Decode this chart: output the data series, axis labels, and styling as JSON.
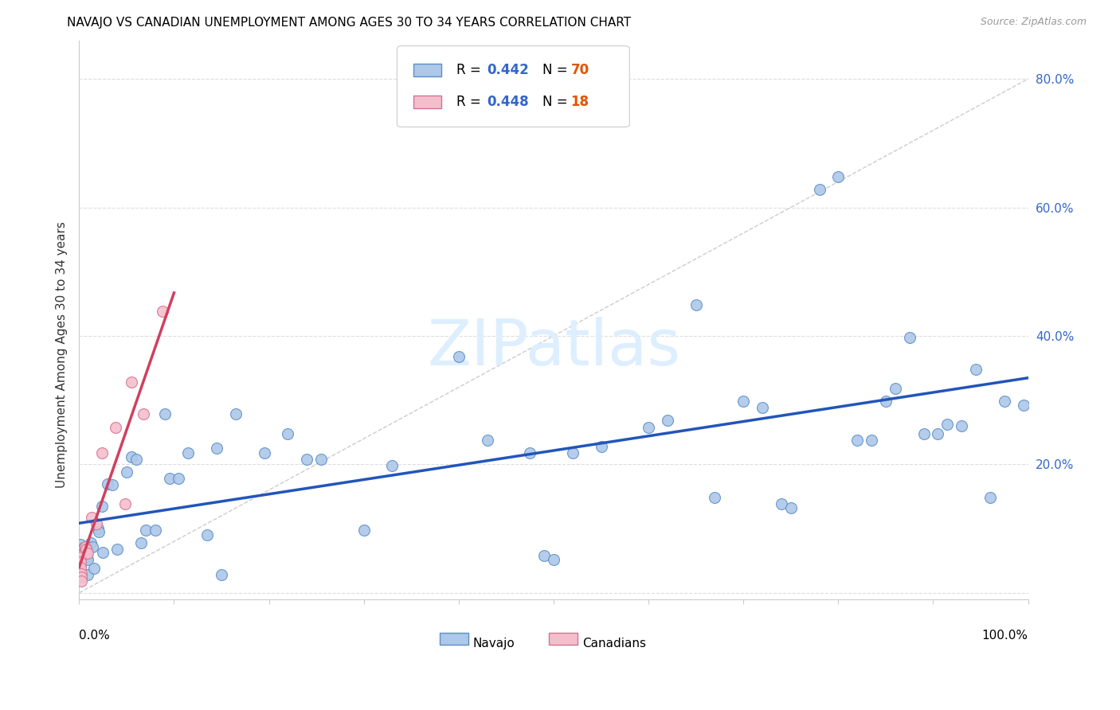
{
  "title": "NAVAJO VS CANADIAN UNEMPLOYMENT AMONG AGES 30 TO 34 YEARS CORRELATION CHART",
  "source": "Source: ZipAtlas.com",
  "ylabel": "Unemployment Among Ages 30 to 34 years",
  "xlim": [
    0.0,
    1.0
  ],
  "ylim": [
    -0.01,
    0.86
  ],
  "ytick_values": [
    0.0,
    0.2,
    0.4,
    0.6,
    0.8
  ],
  "ytick_labels": [
    "",
    "20.0%",
    "40.0%",
    "60.0%",
    "80.0%"
  ],
  "xtick_label_left": "0.0%",
  "xtick_label_right": "100.0%",
  "navajo_R": "0.442",
  "navajo_N": "70",
  "canadian_R": "0.448",
  "canadian_N": "18",
  "navajo_fill": "#adc8e8",
  "navajo_edge": "#5b8fc9",
  "canadian_fill": "#f4bfcc",
  "canadian_edge": "#d87090",
  "navajo_line_color": "#2255bb",
  "canadian_line_color": "#d04060",
  "legend_R_color": "#3366cc",
  "legend_N_color": "#cc3300",
  "watermark_color": "#ddeeff",
  "navajo_x": [
    0.001,
    0.001,
    0.005,
    0.005,
    0.007,
    0.007,
    0.008,
    0.009,
    0.009,
    0.009,
    0.012,
    0.014,
    0.016,
    0.02,
    0.021,
    0.024,
    0.025,
    0.03,
    0.035,
    0.04,
    0.05,
    0.055,
    0.06,
    0.065,
    0.07,
    0.08,
    0.09,
    0.095,
    0.105,
    0.115,
    0.135,
    0.145,
    0.15,
    0.165,
    0.195,
    0.22,
    0.24,
    0.255,
    0.3,
    0.33,
    0.4,
    0.43,
    0.475,
    0.49,
    0.5,
    0.52,
    0.55,
    0.6,
    0.62,
    0.65,
    0.67,
    0.7,
    0.72,
    0.74,
    0.75,
    0.78,
    0.8,
    0.82,
    0.835,
    0.85,
    0.86,
    0.875,
    0.89,
    0.905,
    0.915,
    0.93,
    0.945,
    0.96,
    0.975,
    0.995
  ],
  "navajo_y": [
    0.075,
    0.04,
    0.07,
    0.062,
    0.068,
    0.06,
    0.055,
    0.068,
    0.052,
    0.028,
    0.078,
    0.072,
    0.038,
    0.1,
    0.095,
    0.135,
    0.063,
    0.17,
    0.168,
    0.068,
    0.188,
    0.212,
    0.208,
    0.078,
    0.098,
    0.098,
    0.278,
    0.178,
    0.178,
    0.218,
    0.09,
    0.225,
    0.028,
    0.278,
    0.218,
    0.248,
    0.208,
    0.208,
    0.098,
    0.198,
    0.368,
    0.238,
    0.218,
    0.058,
    0.052,
    0.218,
    0.228,
    0.258,
    0.268,
    0.448,
    0.148,
    0.298,
    0.288,
    0.138,
    0.132,
    0.628,
    0.648,
    0.238,
    0.238,
    0.298,
    0.318,
    0.398,
    0.248,
    0.248,
    0.262,
    0.26,
    0.348,
    0.148,
    0.298,
    0.292
  ],
  "canadian_x": [
    0.001,
    0.001,
    0.001,
    0.001,
    0.002,
    0.002,
    0.002,
    0.006,
    0.007,
    0.009,
    0.013,
    0.018,
    0.024,
    0.038,
    0.048,
    0.055,
    0.068,
    0.088
  ],
  "canadian_y": [
    0.058,
    0.055,
    0.048,
    0.04,
    0.03,
    0.025,
    0.018,
    0.072,
    0.068,
    0.062,
    0.118,
    0.108,
    0.218,
    0.258,
    0.138,
    0.328,
    0.278,
    0.438
  ]
}
